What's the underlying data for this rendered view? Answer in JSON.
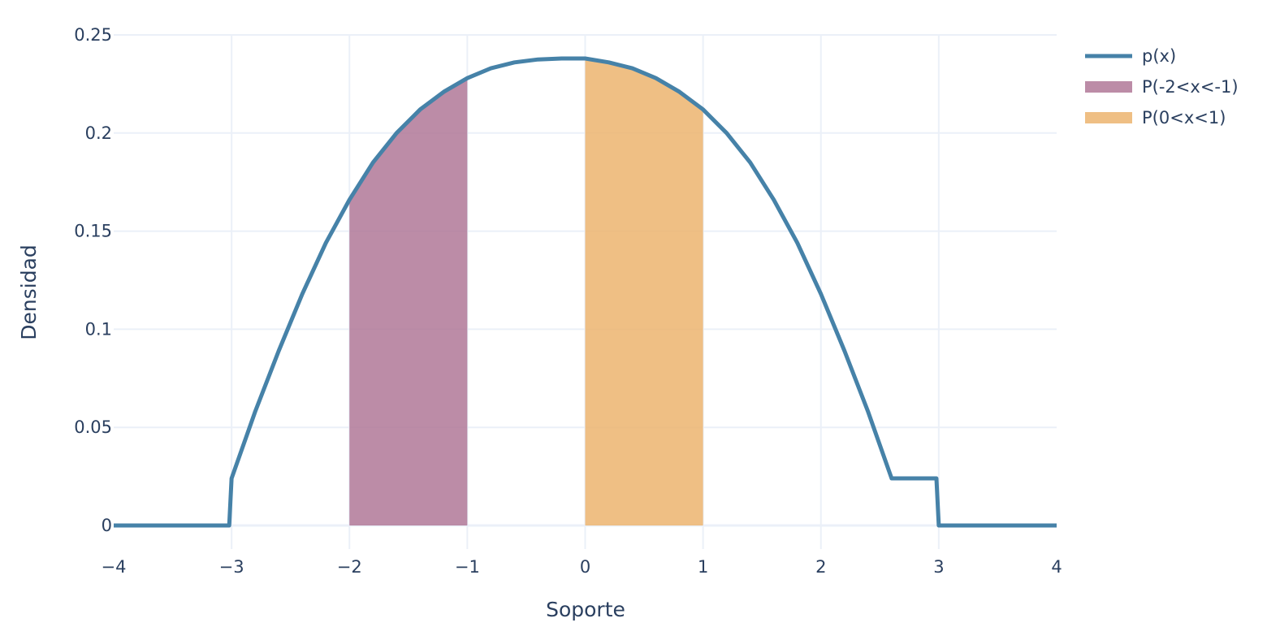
{
  "chart_data": {
    "type": "area",
    "title": "",
    "xlabel": "Soporte",
    "ylabel": "Densidad",
    "xlim": [
      -4,
      4
    ],
    "ylim": [
      -0.012,
      0.25
    ],
    "x_ticks": [
      -4,
      -3,
      -2,
      -1,
      0,
      1,
      2,
      3,
      4
    ],
    "x_tick_labels": [
      "−4",
      "−3",
      "−2",
      "−1",
      "0",
      "1",
      "2",
      "3",
      "4"
    ],
    "y_ticks": [
      0,
      0.05,
      0.1,
      0.15,
      0.2,
      0.25
    ],
    "y_tick_labels": [
      "0",
      "0.05",
      "0.1",
      "0.15",
      "0.2",
      "0.25"
    ],
    "grid": true,
    "legend_position": "top-right",
    "colors": {
      "curve": "#4682a8",
      "shade_a": "#b07898",
      "shade_b": "#ecb46e",
      "grid": "#ebf0f8",
      "zeroline": "#ebf0f8",
      "text": "#2a3f5f"
    },
    "series": [
      {
        "name": "p(x)",
        "kind": "line",
        "x": [
          -4,
          -3.5,
          -3.02,
          -3,
          -2.8,
          -2.6,
          -2.4,
          -2.2,
          -2.0,
          -1.8,
          -1.6,
          -1.4,
          -1.2,
          -1.0,
          -0.8,
          -0.6,
          -0.4,
          -0.2,
          0.0,
          0.2,
          0.4,
          0.6,
          0.8,
          1.0,
          1.2,
          1.4,
          1.6,
          1.8,
          2.0,
          2.2,
          2.4,
          2.6,
          2.8,
          2.98,
          3.0,
          3.5,
          4.0
        ],
        "y": [
          0,
          0,
          0,
          0.024,
          0.058,
          0.089,
          0.118,
          0.144,
          0.166,
          0.185,
          0.2,
          0.212,
          0.221,
          0.228,
          0.233,
          0.236,
          0.2375,
          0.238,
          0.238,
          0.236,
          0.233,
          0.228,
          0.221,
          0.212,
          0.2,
          0.185,
          0.166,
          0.144,
          0.118,
          0.089,
          0.058,
          0.024,
          0.024,
          0.024,
          0,
          0,
          0
        ]
      },
      {
        "name": "P(-2<x<-1)",
        "kind": "area",
        "from": -2,
        "to": -1
      },
      {
        "name": "P(0<x<1)",
        "kind": "area",
        "from": 0,
        "to": 1
      }
    ]
  }
}
